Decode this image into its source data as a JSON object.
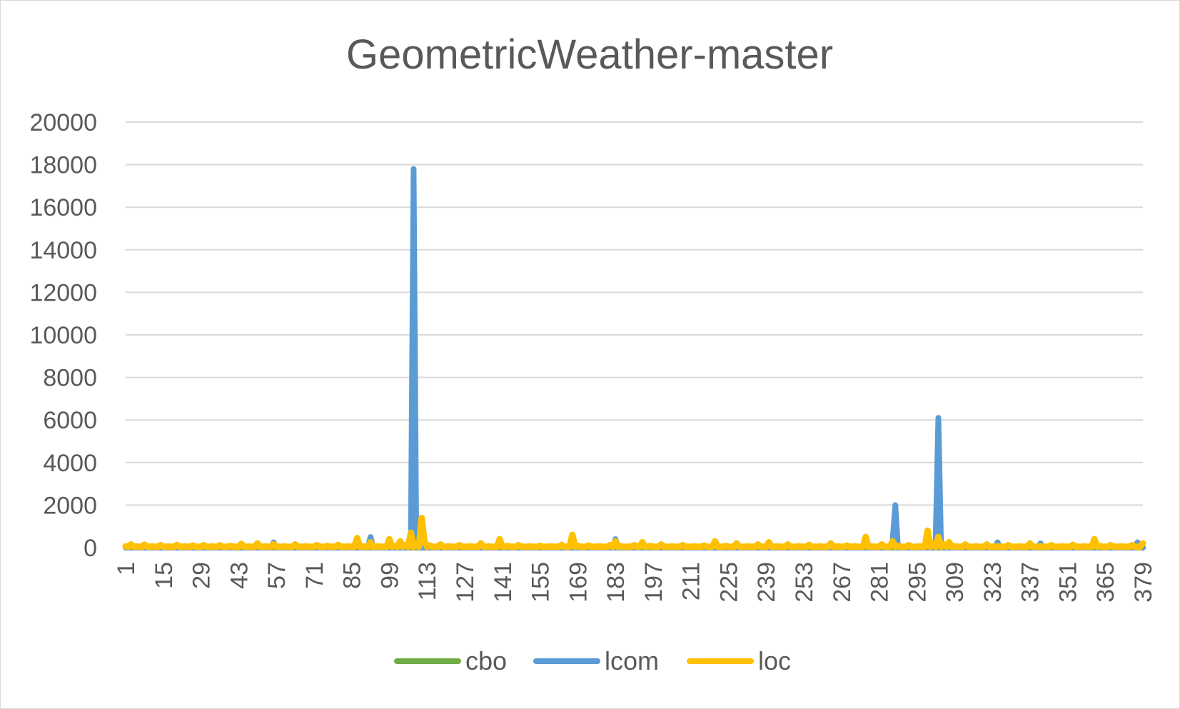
{
  "chart_data": {
    "type": "line",
    "title": "GeometricWeather-master",
    "xlabel": "",
    "ylabel": "",
    "x_range": [
      1,
      379
    ],
    "x_tick_step": 14,
    "y_ticks": [
      0,
      2000,
      4000,
      6000,
      8000,
      10000,
      12000,
      14000,
      16000,
      18000,
      20000
    ],
    "ylim": [
      0,
      20000
    ],
    "grid": true,
    "legend_position": "bottom",
    "series": [
      {
        "name": "cbo",
        "color": "#70ad47",
        "baseline": 5,
        "points": [
          [
            1,
            5
          ],
          [
            379,
            5
          ]
        ]
      },
      {
        "name": "lcom",
        "color": "#5b9bd5",
        "baseline": 0,
        "points": [
          [
            42,
            0
          ],
          [
            43,
            60
          ],
          [
            44,
            0
          ],
          [
            55,
            0
          ],
          [
            56,
            250
          ],
          [
            57,
            0
          ],
          [
            91,
            0
          ],
          [
            92,
            500
          ],
          [
            93,
            0
          ],
          [
            106,
            0
          ],
          [
            107,
            400
          ],
          [
            108,
            17800
          ],
          [
            109,
            300
          ],
          [
            110,
            0
          ],
          [
            182,
            0
          ],
          [
            183,
            400
          ],
          [
            184,
            0
          ],
          [
            285,
            0
          ],
          [
            286,
            300
          ],
          [
            287,
            2000
          ],
          [
            288,
            0
          ],
          [
            301,
            0
          ],
          [
            302,
            300
          ],
          [
            303,
            6100
          ],
          [
            304,
            0
          ],
          [
            324,
            0
          ],
          [
            325,
            250
          ],
          [
            326,
            0
          ],
          [
            340,
            0
          ],
          [
            341,
            200
          ],
          [
            342,
            0
          ],
          [
            376,
            0
          ],
          [
            377,
            250
          ],
          [
            378,
            0
          ]
        ]
      },
      {
        "name": "loc",
        "color": "#ffc000",
        "baseline": 40,
        "points": [
          [
            1,
            60
          ],
          [
            3,
            150
          ],
          [
            5,
            50
          ],
          [
            8,
            140
          ],
          [
            11,
            60
          ],
          [
            14,
            120
          ],
          [
            17,
            50
          ],
          [
            20,
            130
          ],
          [
            23,
            60
          ],
          [
            26,
            100
          ],
          [
            30,
            120
          ],
          [
            33,
            60
          ],
          [
            36,
            110
          ],
          [
            40,
            80
          ],
          [
            44,
            180
          ],
          [
            47,
            50
          ],
          [
            50,
            200
          ],
          [
            53,
            60
          ],
          [
            56,
            160
          ],
          [
            60,
            60
          ],
          [
            64,
            150
          ],
          [
            68,
            60
          ],
          [
            72,
            120
          ],
          [
            76,
            80
          ],
          [
            80,
            130
          ],
          [
            84,
            60
          ],
          [
            87,
            450
          ],
          [
            89,
            60
          ],
          [
            92,
            250
          ],
          [
            95,
            60
          ],
          [
            99,
            400
          ],
          [
            101,
            80
          ],
          [
            103,
            300
          ],
          [
            105,
            120
          ],
          [
            107,
            700
          ],
          [
            109,
            180
          ],
          [
            111,
            1400
          ],
          [
            112,
            300
          ],
          [
            114,
            100
          ],
          [
            118,
            150
          ],
          [
            121,
            60
          ],
          [
            125,
            120
          ],
          [
            129,
            60
          ],
          [
            133,
            200
          ],
          [
            136,
            60
          ],
          [
            140,
            400
          ],
          [
            143,
            80
          ],
          [
            147,
            120
          ],
          [
            151,
            60
          ],
          [
            155,
            90
          ],
          [
            159,
            60
          ],
          [
            163,
            130
          ],
          [
            167,
            600
          ],
          [
            169,
            80
          ],
          [
            173,
            100
          ],
          [
            177,
            60
          ],
          [
            181,
            120
          ],
          [
            183,
            300
          ],
          [
            185,
            60
          ],
          [
            190,
            120
          ],
          [
            193,
            250
          ],
          [
            196,
            80
          ],
          [
            200,
            150
          ],
          [
            204,
            60
          ],
          [
            208,
            120
          ],
          [
            212,
            60
          ],
          [
            216,
            100
          ],
          [
            220,
            300
          ],
          [
            224,
            80
          ],
          [
            228,
            200
          ],
          [
            232,
            60
          ],
          [
            236,
            150
          ],
          [
            240,
            250
          ],
          [
            243,
            60
          ],
          [
            247,
            150
          ],
          [
            251,
            60
          ],
          [
            255,
            130
          ],
          [
            259,
            60
          ],
          [
            263,
            200
          ],
          [
            266,
            60
          ],
          [
            269,
            100
          ],
          [
            272,
            60
          ],
          [
            276,
            500
          ],
          [
            278,
            60
          ],
          [
            282,
            150
          ],
          [
            286,
            300
          ],
          [
            288,
            80
          ],
          [
            292,
            120
          ],
          [
            296,
            60
          ],
          [
            299,
            800
          ],
          [
            301,
            200
          ],
          [
            303,
            500
          ],
          [
            305,
            150
          ],
          [
            307,
            250
          ],
          [
            309,
            60
          ],
          [
            313,
            150
          ],
          [
            317,
            60
          ],
          [
            321,
            150
          ],
          [
            325,
            60
          ],
          [
            329,
            120
          ],
          [
            333,
            60
          ],
          [
            337,
            200
          ],
          [
            341,
            60
          ],
          [
            345,
            120
          ],
          [
            349,
            60
          ],
          [
            353,
            130
          ],
          [
            357,
            60
          ],
          [
            361,
            400
          ],
          [
            363,
            80
          ],
          [
            367,
            120
          ],
          [
            371,
            60
          ],
          [
            375,
            120
          ],
          [
            379,
            200
          ]
        ]
      }
    ]
  }
}
